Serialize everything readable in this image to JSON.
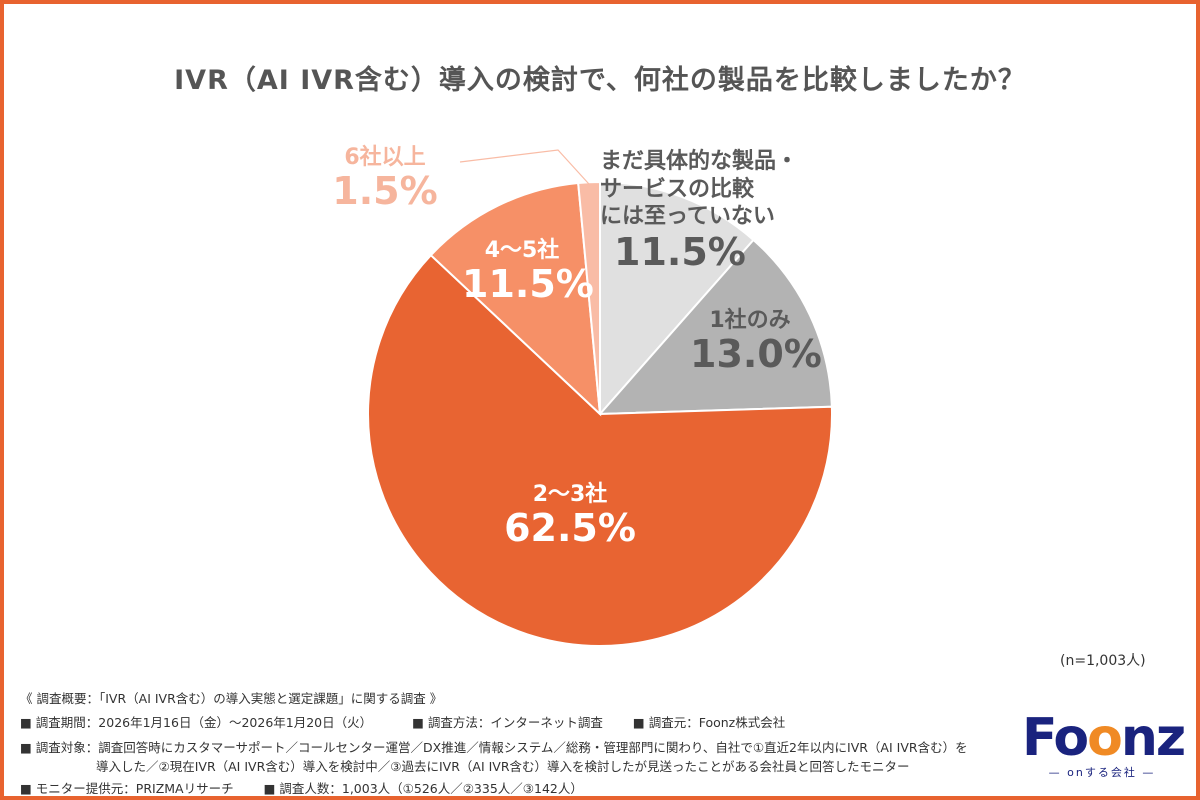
{
  "chart_data": {
    "type": "pie",
    "title": "IVR（AI IVR含む）導入の検討で、何社の製品を比較しましたか？",
    "slices": [
      {
        "label": "まだ具体的な製品・サービスの比較には至っていない",
        "lines": [
          "まだ具体的な製品・",
          "サービスの比較",
          "には至っていない"
        ],
        "value": 11.5,
        "value_label": "11.5%",
        "color": "#e0e0e0",
        "text_color": "#5a5a5a"
      },
      {
        "label": "1社のみ",
        "lines": [
          "1社のみ"
        ],
        "value": 13.0,
        "value_label": "13.0%",
        "color": "#b3b3b3",
        "text_color": "#5a5a5a"
      },
      {
        "label": "2〜3社",
        "lines": [
          "2〜3社"
        ],
        "value": 62.5,
        "value_label": "62.5%",
        "color": "#e86432",
        "text_color": "#ffffff"
      },
      {
        "label": "4〜5社",
        "lines": [
          "4〜5社"
        ],
        "value": 11.5,
        "value_label": "11.5%",
        "color": "#f69067",
        "text_color": "#ffffff"
      },
      {
        "label": "6社以上",
        "lines": [
          "6社以上"
        ],
        "value": 1.5,
        "value_label": "1.5%",
        "color": "#f9bca6",
        "text_color": "#f6b59d"
      }
    ],
    "start": "top",
    "direction": "clockwise",
    "sample_size": "(n=1,003人)"
  },
  "footer": {
    "overview": "《 調査概要：「IVR（AI IVR含む）の導入実態と選定課題」に関する調査 》",
    "period": "■ 調査期間：2026年1月16日（金）〜2026年1月20日（火）",
    "method": "■ 調査方法：インターネット調査",
    "source": "■ 調査元：Foonz株式会社",
    "target_1": "■ 調査対象：調査回答時にカスタマーサポート／コールセンター運営／DX推進／情報システム／総務・管理部門に関わり、自社で①直近2年以内にIVR（AI IVR含む）を",
    "target_2": "導入した／②現在IVR（AI IVR含む）導入を検討中／③過去にIVR（AI IVR含む）導入を検討したが見送ったことがある会社員と回答したモニター",
    "monitor": "■ モニター提供元：PRIZMAリサーチ",
    "count": "■ 調査人数：1,003人（①526人／②335人／③142人）"
  },
  "logo": {
    "text": "Foonz",
    "tagline": "— onする会社 —"
  },
  "colors": {
    "frame": "#e8632f",
    "title": "#555555"
  }
}
